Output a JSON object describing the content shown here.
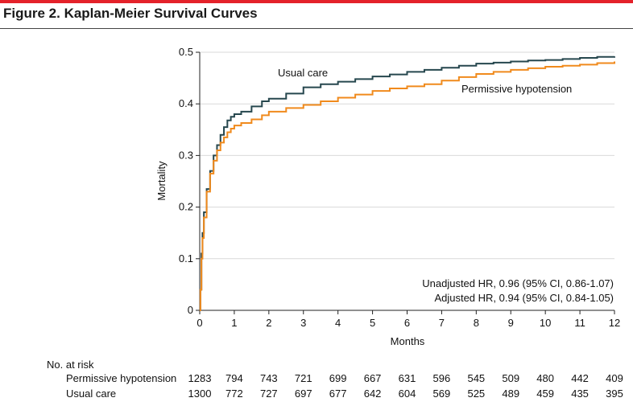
{
  "figure": {
    "title": "Figure 2. Kaplan-Meier Survival Curves"
  },
  "chart_data": {
    "type": "line",
    "step": true,
    "xlabel": "Months",
    "ylabel": "Mortality",
    "xlim": [
      0,
      12
    ],
    "ylim": [
      0,
      0.5
    ],
    "x_ticks": [
      0,
      1,
      2,
      3,
      4,
      5,
      6,
      7,
      8,
      9,
      10,
      11,
      12
    ],
    "y_ticks": [
      0,
      0.1,
      0.2,
      0.3,
      0.4,
      0.5
    ],
    "y_tick_labels": [
      "0",
      "0.1",
      "0.2",
      "0.3",
      "0.4",
      "0.5"
    ],
    "grid": "horizontal",
    "series": [
      {
        "name": "Usual care",
        "color": "#26474e",
        "x": [
          0,
          0.02,
          0.05,
          0.08,
          0.12,
          0.2,
          0.3,
          0.4,
          0.5,
          0.6,
          0.7,
          0.8,
          0.9,
          1.0,
          1.2,
          1.5,
          1.8,
          2.0,
          2.5,
          3.0,
          3.5,
          4.0,
          4.5,
          5.0,
          5.5,
          6.0,
          6.5,
          7.0,
          7.5,
          8.0,
          8.5,
          9.0,
          9.5,
          10.0,
          10.5,
          11.0,
          11.5,
          12.0
        ],
        "y": [
          0,
          0.04,
          0.11,
          0.15,
          0.19,
          0.235,
          0.27,
          0.3,
          0.32,
          0.34,
          0.355,
          0.368,
          0.375,
          0.38,
          0.385,
          0.395,
          0.405,
          0.41,
          0.42,
          0.432,
          0.438,
          0.443,
          0.448,
          0.453,
          0.457,
          0.462,
          0.466,
          0.47,
          0.474,
          0.478,
          0.48,
          0.482,
          0.484,
          0.485,
          0.487,
          0.489,
          0.491,
          0.492
        ]
      },
      {
        "name": "Permissive hypotension",
        "color": "#f08a1c",
        "x": [
          0,
          0.02,
          0.05,
          0.08,
          0.12,
          0.2,
          0.3,
          0.4,
          0.5,
          0.6,
          0.7,
          0.8,
          0.9,
          1.0,
          1.2,
          1.5,
          1.8,
          2.0,
          2.5,
          3.0,
          3.5,
          4.0,
          4.5,
          5.0,
          5.5,
          6.0,
          6.5,
          7.0,
          7.5,
          8.0,
          8.5,
          9.0,
          9.5,
          10.0,
          10.5,
          11.0,
          11.5,
          12.0
        ],
        "y": [
          0,
          0.04,
          0.1,
          0.14,
          0.18,
          0.23,
          0.265,
          0.29,
          0.31,
          0.325,
          0.335,
          0.345,
          0.352,
          0.358,
          0.363,
          0.37,
          0.378,
          0.385,
          0.392,
          0.398,
          0.405,
          0.412,
          0.418,
          0.425,
          0.43,
          0.434,
          0.438,
          0.445,
          0.452,
          0.458,
          0.462,
          0.466,
          0.469,
          0.472,
          0.474,
          0.476,
          0.479,
          0.482
        ]
      }
    ],
    "annotations": {
      "usual_care_label": "Usual care",
      "permissive_label": "Permissive hypotension",
      "hr_unadjusted": "Unadjusted HR, 0.96 (95% CI, 0.86-1.07)",
      "hr_adjusted": "Adjusted HR, 0.94 (95% CI, 0.84-1.05)"
    }
  },
  "risk_table": {
    "title": "No. at risk",
    "rows": [
      {
        "label": "Permissive hypotension",
        "values": [
          "1283",
          "794",
          "743",
          "721",
          "699",
          "667",
          "631",
          "596",
          "545",
          "509",
          "480",
          "442",
          "409"
        ]
      },
      {
        "label": "Usual care",
        "values": [
          "1300",
          "772",
          "727",
          "697",
          "677",
          "642",
          "604",
          "569",
          "525",
          "489",
          "459",
          "435",
          "395"
        ]
      }
    ]
  }
}
